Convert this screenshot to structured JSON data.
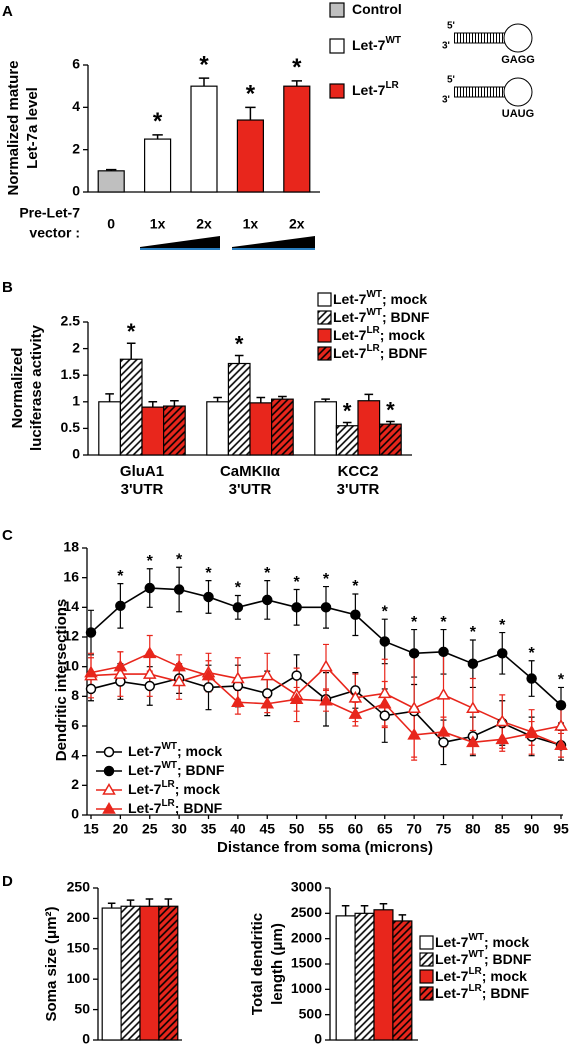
{
  "chart_data": [
    {
      "type": "bar",
      "panel": "A",
      "categories": [
        "0",
        "1x",
        "2x",
        "1x",
        "2x"
      ],
      "x_label": [
        "Pre-Let-7",
        "vector :"
      ],
      "y_label": [
        "Normalized mature",
        "Let-7a level"
      ],
      "values": [
        1.0,
        2.5,
        5.0,
        3.4,
        5.0
      ],
      "errors": [
        0.06,
        0.2,
        0.38,
        0.6,
        0.25
      ],
      "annotations": [
        null,
        "*",
        "*",
        "*",
        "*"
      ],
      "colors": [
        "#bfbfbf",
        "#ffffff",
        "#ffffff",
        "#e8261c",
        "#e8261c"
      ],
      "ylim": [
        0,
        6
      ],
      "yticks": [
        0,
        2,
        4,
        6
      ],
      "legend": [
        {
          "name": "Control",
          "color": "#bfbfbf"
        },
        {
          "name": "Let-7",
          "sup": "WT",
          "color": "#ffffff"
        },
        {
          "name": "Let-7",
          "sup": "LR",
          "color": "#e8261c"
        }
      ],
      "hairpins": [
        {
          "five": "5'",
          "three": "3'",
          "loop": "GAGG",
          "loop_color": "#000000"
        },
        {
          "five": "5'",
          "three": "3'",
          "loop": "UAUG",
          "loop_color": "#d6246e"
        }
      ]
    },
    {
      "type": "grouped_bar",
      "panel": "B",
      "categories": [
        [
          "GluA1",
          "3'UTR"
        ],
        [
          "CaMKIIα",
          "3'UTR"
        ],
        [
          "KCC2",
          "3'UTR"
        ]
      ],
      "y_label": [
        "Normalized",
        "luciferase activity"
      ],
      "ylim": [
        0,
        2.5
      ],
      "yticks": [
        0,
        0.5,
        1,
        1.5,
        2,
        2.5
      ],
      "series": [
        {
          "name": "Let-7",
          "sup": "WT",
          "suffix": "; mock",
          "color": "#ffffff",
          "hatch": false,
          "values": [
            1.0,
            1.0,
            1.0
          ],
          "errors": [
            0.15,
            0.08,
            0.05
          ],
          "annotations": [
            null,
            null,
            null
          ]
        },
        {
          "name": "Let-7",
          "sup": "WT",
          "suffix": "; BDNF",
          "color": "#ffffff",
          "hatch": true,
          "values": [
            1.8,
            1.72,
            0.55
          ],
          "errors": [
            0.3,
            0.15,
            0.06
          ],
          "annotations": [
            "*",
            "*",
            "*"
          ]
        },
        {
          "name": "Let-7",
          "sup": "LR",
          "suffix": "; mock",
          "color": "#e8261c",
          "hatch": false,
          "values": [
            0.9,
            0.98,
            1.02
          ],
          "errors": [
            0.1,
            0.1,
            0.12
          ],
          "annotations": [
            null,
            null,
            null
          ]
        },
        {
          "name": "Let-7",
          "sup": "LR",
          "suffix": "; BDNF",
          "color": "#e8261c",
          "hatch": true,
          "values": [
            0.92,
            1.05,
            0.58
          ],
          "errors": [
            0.1,
            0.05,
            0.05
          ],
          "annotations": [
            null,
            null,
            "*"
          ]
        }
      ]
    },
    {
      "type": "line",
      "panel": "C",
      "x": [
        15,
        20,
        25,
        30,
        35,
        40,
        45,
        50,
        55,
        60,
        65,
        70,
        75,
        80,
        85,
        90,
        95
      ],
      "xlim": [
        15,
        95
      ],
      "xticks": [
        15,
        20,
        25,
        30,
        35,
        40,
        45,
        50,
        55,
        60,
        65,
        70,
        75,
        80,
        85,
        90,
        95
      ],
      "ylim": [
        0,
        18
      ],
      "yticks": [
        0,
        2,
        4,
        6,
        8,
        10,
        12,
        14,
        16,
        18
      ],
      "x_label": "Distance from soma (microns)",
      "y_label": [
        "Dendritic intersections"
      ],
      "series": [
        {
          "name": "Let-7",
          "sup": "WT",
          "suffix": "; mock",
          "color": "#000000",
          "marker": "circle",
          "filled": false,
          "values": [
            8.5,
            9.0,
            8.7,
            9.2,
            8.6,
            8.7,
            8.2,
            9.4,
            7.8,
            8.4,
            6.7,
            7.0,
            4.9,
            5.3,
            6.2,
            5.3,
            4.7
          ],
          "errors": [
            0.8,
            1.2,
            1.3,
            1.0,
            1.5,
            1.4,
            1.5,
            1.4,
            1.8,
            1.2,
            1.8,
            1.8,
            1.5,
            1.3,
            1.5,
            1.3,
            1.0
          ]
        },
        {
          "name": "Let-7",
          "sup": "WT",
          "suffix": "; BDNF",
          "color": "#000000",
          "marker": "circle",
          "filled": true,
          "values": [
            12.3,
            14.1,
            15.3,
            15.2,
            14.7,
            14.0,
            14.5,
            14.0,
            14.0,
            13.5,
            11.7,
            10.9,
            11.0,
            10.2,
            10.9,
            9.2,
            7.4
          ],
          "errors": [
            1.5,
            1.5,
            1.3,
            1.5,
            1.1,
            0.8,
            1.3,
            1.2,
            1.4,
            1.4,
            1.5,
            1.6,
            1.5,
            1.6,
            1.4,
            1.2,
            1.2
          ],
          "annotations": [
            null,
            "*",
            "*",
            "*",
            "*",
            "*",
            "*",
            "*",
            "*",
            "*",
            "*",
            "*",
            "*",
            "*",
            "*",
            "*",
            "*"
          ]
        },
        {
          "name": "Let-7",
          "sup": "LR",
          "suffix": "; mock",
          "color": "#e8261c",
          "marker": "triangle",
          "filled": false,
          "values": [
            9.4,
            9.5,
            9.5,
            9.0,
            9.6,
            9.2,
            9.4,
            8.1,
            10.0,
            7.9,
            8.2,
            7.2,
            8.1,
            7.2,
            6.3,
            5.6,
            6.0
          ],
          "errors": [
            1.5,
            1.5,
            1.5,
            1.2,
            1.3,
            1.4,
            1.5,
            1.8,
            1.5,
            1.6,
            2.3,
            3.5,
            2.7,
            2.0,
            1.8,
            1.5,
            1.3
          ]
        },
        {
          "name": "Let-7",
          "sup": "LR",
          "suffix": "; BDNF",
          "color": "#e8261c",
          "marker": "triangle",
          "filled": true,
          "values": [
            9.6,
            10.0,
            10.9,
            10.0,
            9.4,
            7.6,
            7.5,
            7.8,
            7.7,
            6.8,
            7.5,
            5.4,
            5.6,
            4.9,
            5.1,
            5.5,
            4.7
          ],
          "errors": [
            1.0,
            1.0,
            1.2,
            0.8,
            1.0,
            0.8,
            0.6,
            0.8,
            0.7,
            0.8,
            1.5,
            1.5,
            1.0,
            0.8,
            0.8,
            0.8,
            0.8
          ]
        }
      ]
    },
    {
      "type": "grouped_bar",
      "panel": "D",
      "y_label": [
        "Soma size (μm²)"
      ],
      "ylim": [
        0,
        250
      ],
      "yticks": [
        0,
        50,
        100,
        150,
        200,
        250
      ],
      "series": [
        {
          "color": "#ffffff",
          "hatch": false,
          "values": [
            217
          ],
          "errors": [
            8
          ]
        },
        {
          "color": "#ffffff",
          "hatch": true,
          "values": [
            220
          ],
          "errors": [
            10
          ]
        },
        {
          "color": "#e8261c",
          "hatch": false,
          "values": [
            220
          ],
          "errors": [
            12
          ]
        },
        {
          "color": "#e8261c",
          "hatch": true,
          "values": [
            220
          ],
          "errors": [
            12
          ]
        }
      ]
    },
    {
      "type": "grouped_bar",
      "y_label": [
        "Total dendritic",
        "length (μm)"
      ],
      "ylim": [
        0,
        3000
      ],
      "yticks": [
        0,
        500,
        1000,
        1500,
        2000,
        2500,
        3000
      ],
      "series": [
        {
          "name": "Let-7",
          "sup": "WT",
          "suffix": "; mock",
          "color": "#ffffff",
          "hatch": false,
          "values": [
            2450
          ],
          "errors": [
            200
          ]
        },
        {
          "name": "Let-7",
          "sup": "WT",
          "suffix": "; BDNF",
          "color": "#ffffff",
          "hatch": true,
          "values": [
            2500
          ],
          "errors": [
            150
          ]
        },
        {
          "name": "Let-7",
          "sup": "LR",
          "suffix": "; mock",
          "color": "#e8261c",
          "hatch": false,
          "values": [
            2570
          ],
          "errors": [
            120
          ]
        },
        {
          "name": "Let-7",
          "sup": "LR",
          "suffix": "; BDNF",
          "color": "#e8261c",
          "hatch": true,
          "values": [
            2350
          ],
          "errors": [
            120
          ]
        }
      ]
    }
  ]
}
